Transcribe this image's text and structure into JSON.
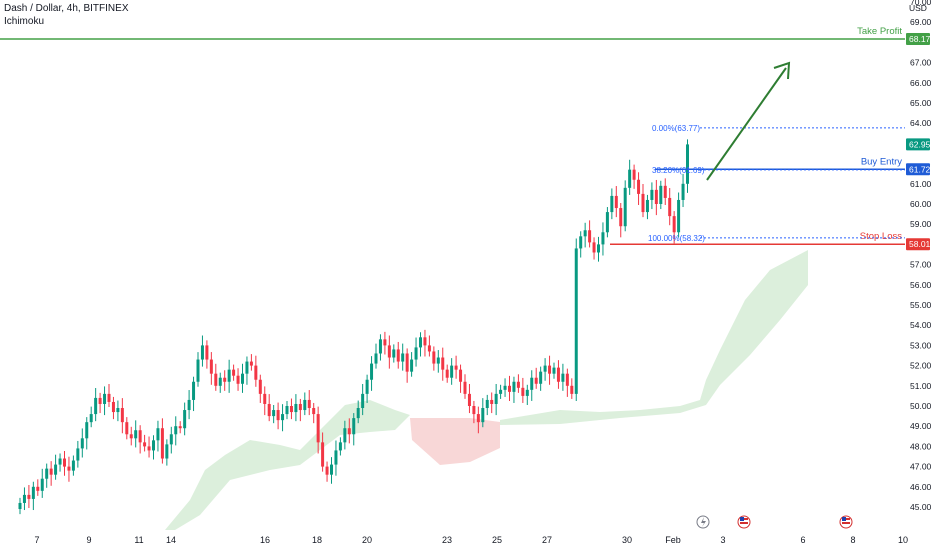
{
  "header": {
    "title": "Dash / Dollar, 4h, BITFINEX",
    "indicator": "Ichimoku",
    "currency": "USD"
  },
  "chart_data": {
    "type": "candlestick",
    "symbol": "Dash / Dollar",
    "interval": "4h",
    "exchange": "BITFINEX",
    "ylim": [
      45,
      70
    ],
    "y_ticks": [
      "70.00",
      "69.00",
      "67.00",
      "66.00",
      "65.00",
      "64.00",
      "61.00",
      "60.00",
      "59.00",
      "57.00",
      "56.00",
      "55.00",
      "54.00",
      "53.00",
      "52.00",
      "51.00",
      "50.00",
      "49.00",
      "48.00",
      "47.00",
      "46.00",
      "45.00"
    ],
    "x_ticks": [
      "7",
      "9",
      "11",
      "14",
      "16",
      "18",
      "20",
      "23",
      "25",
      "27",
      "30",
      "Feb",
      "3",
      "6",
      "8",
      "10"
    ],
    "x_tick_positions": [
      0,
      52,
      102,
      134,
      228,
      280,
      330,
      410,
      460,
      510,
      590,
      636,
      686,
      766,
      816,
      866
    ],
    "closes": [
      45.2,
      45.6,
      45.4,
      46.0,
      45.8,
      46.4,
      46.9,
      46.6,
      47.1,
      47.4,
      47.0,
      46.8,
      47.3,
      47.9,
      48.4,
      49.2,
      49.6,
      50.4,
      50.1,
      50.6,
      50.2,
      49.7,
      49.9,
      49.2,
      48.6,
      48.4,
      48.8,
      48.2,
      48.0,
      47.8,
      48.3,
      48.9,
      47.4,
      48.1,
      48.6,
      49.0,
      48.9,
      49.8,
      50.3,
      51.2,
      52.3,
      53.0,
      52.3,
      51.6,
      51.0,
      51.4,
      51.2,
      51.8,
      51.5,
      51.1,
      51.6,
      52.2,
      52.0,
      51.3,
      50.6,
      50.1,
      49.5,
      49.8,
      49.3,
      49.6,
      50.0,
      49.7,
      50.1,
      49.8,
      50.3,
      49.9,
      49.6,
      48.2,
      47.0,
      46.6,
      47.1,
      47.8,
      48.2,
      48.9,
      48.6,
      49.4,
      49.9,
      50.6,
      51.3,
      52.1,
      52.6,
      53.3,
      53.0,
      52.4,
      52.8,
      52.2,
      52.6,
      51.7,
      52.3,
      52.9,
      53.4,
      53.0,
      52.7,
      52.1,
      52.4,
      51.8,
      51.4,
      52.0,
      51.8,
      51.2,
      50.6,
      50.0,
      49.6,
      49.2,
      49.9,
      50.3,
      50.1,
      50.6,
      50.8,
      51.0,
      50.7,
      51.2,
      50.9,
      50.5,
      50.8,
      51.4,
      51.1,
      51.7,
      52.0,
      51.6,
      51.9,
      51.2,
      51.6,
      51.0,
      50.6,
      57.8,
      58.4,
      58.7,
      58.1,
      57.6,
      58.0,
      58.6,
      59.6,
      60.4,
      59.8,
      58.9,
      60.8,
      61.7,
      61.2,
      60.5,
      59.6,
      60.2,
      60.7,
      60.0,
      60.9,
      60.3,
      59.4,
      58.6,
      60.2,
      61.0,
      62.95
    ],
    "price_labels": {
      "take_profit": {
        "label": "Take Profit",
        "value": "68.17",
        "price": 68.17
      },
      "current": {
        "value": "62.95",
        "price": 62.95
      },
      "buy_entry": {
        "label": "Buy Entry",
        "value": "61.72",
        "price": 61.72
      },
      "stop_loss": {
        "label": "Stop Loss",
        "value": "58.01",
        "price": 58.01
      }
    },
    "fib_levels": [
      {
        "label": "0.00%(63.77)",
        "price": 63.77
      },
      {
        "label": "38.20%(61.69)",
        "price": 61.69
      },
      {
        "label": "100.00%(58.32)",
        "price": 58.32
      }
    ]
  },
  "colors": {
    "up": "#089981",
    "down": "#f23645",
    "take_profit": "#43a047",
    "buy_entry": "#1e5bd6",
    "stop_loss": "#e53935",
    "fib": "#2962ff",
    "cloud_green": "#dcefdc",
    "cloud_red": "#f8d7d7",
    "arrow": "#2e7d32"
  },
  "icons": [
    "lightning-icon",
    "us-flag-icon",
    "us-flag-icon"
  ]
}
